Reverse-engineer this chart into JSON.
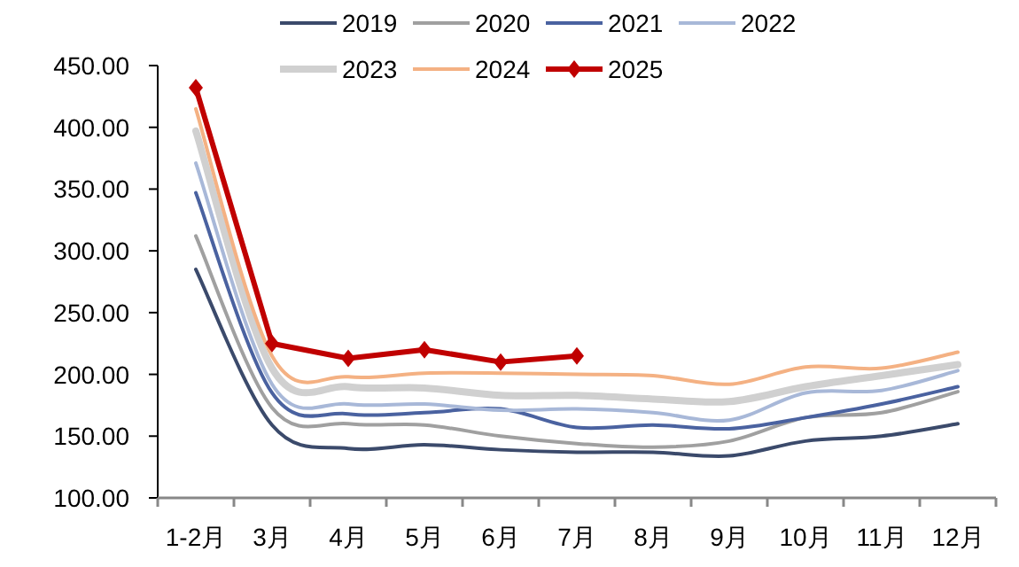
{
  "chart_data": {
    "type": "line",
    "categories": [
      "1-2月",
      "3月",
      "4月",
      "5月",
      "6月",
      "7月",
      "8月",
      "9月",
      "10月",
      "11月",
      "12月"
    ],
    "ylim": [
      100,
      450
    ],
    "yticks": [
      {
        "value": 100,
        "label": "100.00"
      },
      {
        "value": 150,
        "label": "150.00"
      },
      {
        "value": 200,
        "label": "200.00"
      },
      {
        "value": 250,
        "label": "250.00"
      },
      {
        "value": 300,
        "label": "300.00"
      },
      {
        "value": 350,
        "label": "350.00"
      },
      {
        "value": 400,
        "label": "400.00"
      },
      {
        "value": 450,
        "label": "450.00"
      }
    ],
    "grid": false,
    "legend": "top",
    "series": [
      {
        "name": "2019",
        "color": "#3b4a6b",
        "values": [
          285,
          159,
          140,
          143,
          139,
          137,
          137,
          134,
          146,
          150,
          160
        ]
      },
      {
        "name": "2020",
        "color": "#a0a0a0",
        "values": [
          312,
          173,
          160,
          159,
          150,
          144,
          141,
          146,
          165,
          169,
          186
        ]
      },
      {
        "name": "2021",
        "color": "#4a62a0",
        "values": [
          347,
          185,
          168,
          169,
          172,
          157,
          159,
          156,
          165,
          176,
          190
        ]
      },
      {
        "name": "2022",
        "color": "#a8b8d8",
        "values": [
          371,
          192,
          176,
          176,
          171,
          172,
          169,
          163,
          185,
          187,
          203
        ]
      },
      {
        "name": "2023",
        "color": "#d0d0d0",
        "values": [
          397,
          205,
          190,
          189,
          183,
          183,
          180,
          178,
          190,
          199,
          208
        ]
      },
      {
        "name": "2024",
        "color": "#f4b183",
        "values": [
          415,
          215,
          198,
          201,
          201,
          200,
          199,
          192,
          206,
          205,
          218
        ]
      },
      {
        "name": "2025",
        "color": "#c00000",
        "marker": "diamond",
        "values": [
          432,
          225,
          213,
          220,
          210,
          215,
          null,
          null,
          null,
          null,
          null
        ]
      }
    ]
  }
}
